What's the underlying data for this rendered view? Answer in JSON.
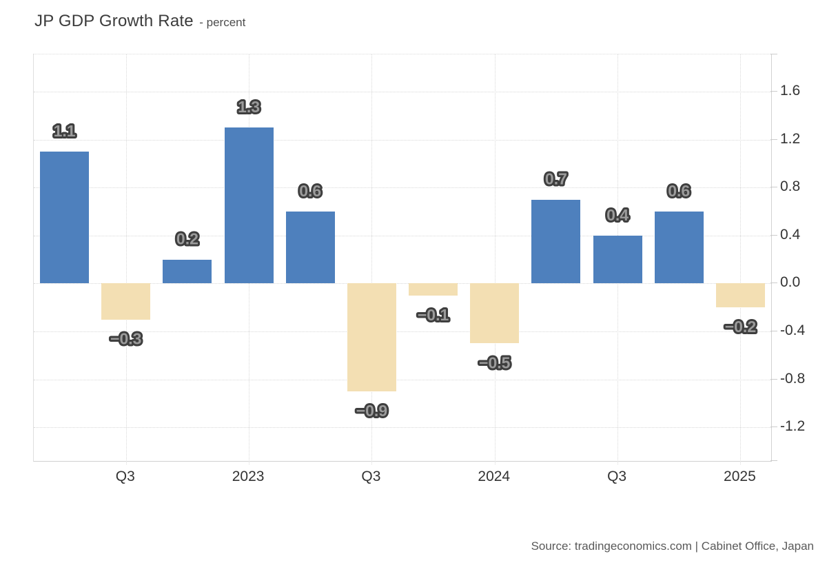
{
  "header": {
    "title": "JP GDP Growth Rate",
    "subtitle": "- percent"
  },
  "footer": {
    "source": "Source: tradingeconomics.com | Cabinet Office, Japan"
  },
  "chart_data": {
    "type": "bar",
    "title": "JP GDP Growth Rate",
    "unit": "percent",
    "values": [
      1.1,
      -0.3,
      0.2,
      1.3,
      0.6,
      -0.9,
      -0.1,
      -0.5,
      0.7,
      0.4,
      0.6,
      -0.2
    ],
    "bar_labels": [
      "1.1",
      "−0.3",
      "0.2",
      "1.3",
      "0.6",
      "−0.9",
      "−0.1",
      "−0.5",
      "0.7",
      "0.4",
      "0.6",
      "−0.2"
    ],
    "x_ticks": [
      {
        "label": "Q3",
        "bar_index": 1
      },
      {
        "label": "2023",
        "bar_index": 3
      },
      {
        "label": "Q3",
        "bar_index": 5
      },
      {
        "label": "2024",
        "bar_index": 7
      },
      {
        "label": "Q3",
        "bar_index": 9
      },
      {
        "label": "2025",
        "bar_index": 11
      }
    ],
    "y_ticks": [
      {
        "label": "1.6",
        "value": 1.6
      },
      {
        "label": "1.2",
        "value": 1.2
      },
      {
        "label": "0.8",
        "value": 0.8
      },
      {
        "label": "0.4",
        "value": 0.4
      },
      {
        "label": "0.0",
        "value": 0.0
      },
      {
        "label": "-0.4",
        "value": -0.4
      },
      {
        "label": "-0.8",
        "value": -0.8
      },
      {
        "label": "-1.2",
        "value": -1.2
      }
    ],
    "ylim": [
      -1.48,
      1.91
    ],
    "grid": "dotted",
    "legend": "none",
    "colors": {
      "positive_bar": "#4e80bd",
      "negative_bar": "#f3dfb3",
      "label_fill": "#9b9b9b",
      "label_stroke": "#3e3e3e"
    }
  }
}
